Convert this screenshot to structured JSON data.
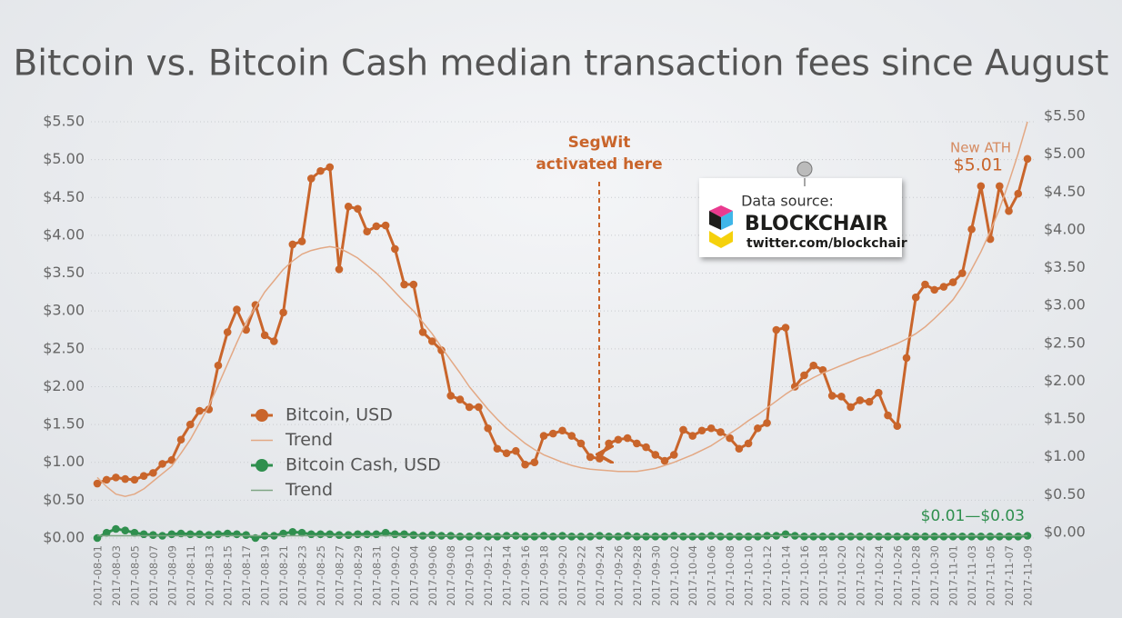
{
  "chart_data": {
    "type": "line",
    "title": "Bitcoin vs. Bitcoin Cash median transaction fees since August",
    "categories": [
      "2017-08-01",
      null,
      "2017-08-03",
      null,
      "2017-08-05",
      null,
      "2017-08-07",
      null,
      "2017-08-09",
      null,
      "2017-08-11",
      null,
      "2017-08-13",
      null,
      "2017-08-15",
      null,
      "2017-08-17",
      null,
      "2017-08-19",
      null,
      "2017-08-21",
      null,
      "2017-08-23",
      null,
      "2017-08-25",
      null,
      "2017-08-27",
      null,
      "2017-08-29",
      null,
      "2017-08-31",
      null,
      "2017-09-02",
      null,
      "2017-09-04",
      null,
      "2017-09-06",
      null,
      "2017-09-08",
      null,
      "2017-09-10",
      null,
      "2017-09-12",
      null,
      "2017-09-14",
      null,
      "2017-09-16",
      null,
      "2017-09-18",
      null,
      "2017-09-20",
      null,
      "2017-09-22",
      null,
      "2017-09-24",
      null,
      "2017-09-26",
      null,
      "2017-09-28",
      null,
      "2017-09-30",
      null,
      "2017-10-02",
      null,
      "2017-10-04",
      null,
      "2017-10-06",
      null,
      "2017-10-08",
      null,
      "2017-10-10",
      null,
      "2017-10-12",
      null,
      "2017-10-14",
      null,
      "2017-10-16",
      null,
      "2017-10-18",
      null,
      "2017-10-20",
      null,
      "2017-10-22",
      null,
      "2017-10-24",
      null,
      "2017-10-26",
      null,
      "2017-10-28",
      null,
      "2017-10-30",
      null,
      "2017-11-01",
      null,
      "2017-11-03",
      null,
      "2017-11-05",
      null,
      "2017-11-07",
      null,
      "2017-11-09"
    ],
    "series": [
      {
        "name": "Bitcoin, USD",
        "color": "#c9652b",
        "style": "dots",
        "values": [
          0.72,
          0.77,
          0.8,
          0.78,
          0.77,
          0.82,
          0.86,
          0.98,
          1.03,
          1.3,
          1.5,
          1.68,
          1.7,
          2.28,
          2.72,
          3.02,
          2.75,
          3.08,
          2.68,
          2.6,
          2.98,
          3.88,
          3.92,
          4.75,
          4.85,
          4.9,
          3.55,
          4.38,
          4.35,
          4.05,
          4.12,
          4.13,
          3.82,
          3.35,
          3.35,
          2.72,
          2.6,
          2.48,
          1.88,
          1.83,
          1.73,
          1.73,
          1.45,
          1.18,
          1.12,
          1.15,
          0.97,
          1.0,
          1.35,
          1.38,
          1.42,
          1.35,
          1.25,
          1.07,
          1.05,
          1.25,
          1.3,
          1.32,
          1.25,
          1.2,
          1.1,
          1.02,
          1.1,
          1.43,
          1.35,
          1.42,
          1.45,
          1.4,
          1.32,
          1.18,
          1.25,
          1.45,
          1.52,
          2.75,
          2.78,
          2.0,
          2.15,
          2.28,
          2.22,
          1.88,
          1.87,
          1.73,
          1.82,
          1.8,
          1.92,
          1.62,
          1.48,
          2.38,
          3.18,
          3.35,
          3.28,
          3.32,
          3.38,
          3.5,
          4.08,
          4.65,
          3.95,
          4.65,
          4.32,
          4.55,
          5.01
        ]
      },
      {
        "name": "Trend",
        "color": "#e3a884",
        "style": "thin",
        "values": [
          0.8,
          0.68,
          0.58,
          0.55,
          0.58,
          0.65,
          0.75,
          0.85,
          0.95,
          1.12,
          1.3,
          1.52,
          1.75,
          2.02,
          2.3,
          2.58,
          2.85,
          3.05,
          3.25,
          3.4,
          3.55,
          3.66,
          3.75,
          3.8,
          3.83,
          3.85,
          3.83,
          3.77,
          3.7,
          3.6,
          3.5,
          3.38,
          3.25,
          3.12,
          3.0,
          2.85,
          2.7,
          2.52,
          2.35,
          2.18,
          2.0,
          1.85,
          1.7,
          1.57,
          1.45,
          1.35,
          1.25,
          1.17,
          1.1,
          1.05,
          1.0,
          0.96,
          0.93,
          0.91,
          0.9,
          0.89,
          0.88,
          0.88,
          0.88,
          0.9,
          0.92,
          0.96,
          1.0,
          1.05,
          1.1,
          1.16,
          1.22,
          1.3,
          1.38,
          1.46,
          1.55,
          1.63,
          1.72,
          1.81,
          1.9,
          1.98,
          2.05,
          2.12,
          2.18,
          2.23,
          2.28,
          2.33,
          2.38,
          2.42,
          2.47,
          2.52,
          2.57,
          2.63,
          2.7,
          2.79,
          2.9,
          3.02,
          3.15,
          3.33,
          3.55,
          3.78,
          4.05,
          4.35,
          4.7,
          5.08,
          5.5
        ]
      },
      {
        "name": "Bitcoin Cash, USD",
        "color": "#2f8f4e",
        "style": "dots",
        "values": [
          0.0,
          0.07,
          0.12,
          0.1,
          0.07,
          0.05,
          0.04,
          0.03,
          0.05,
          0.06,
          0.05,
          0.05,
          0.04,
          0.05,
          0.06,
          0.05,
          0.04,
          0.0,
          0.03,
          0.03,
          0.06,
          0.08,
          0.07,
          0.05,
          0.05,
          0.05,
          0.04,
          0.04,
          0.05,
          0.05,
          0.05,
          0.07,
          0.05,
          0.05,
          0.04,
          0.03,
          0.04,
          0.03,
          0.03,
          0.02,
          0.02,
          0.03,
          0.02,
          0.02,
          0.03,
          0.03,
          0.02,
          0.02,
          0.03,
          0.02,
          0.03,
          0.02,
          0.02,
          0.02,
          0.03,
          0.02,
          0.02,
          0.03,
          0.02,
          0.02,
          0.02,
          0.02,
          0.03,
          0.02,
          0.02,
          0.02,
          0.03,
          0.02,
          0.02,
          0.02,
          0.02,
          0.02,
          0.03,
          0.03,
          0.05,
          0.03,
          0.02,
          0.02,
          0.02,
          0.02,
          0.02,
          0.02,
          0.02,
          0.02,
          0.02,
          0.02,
          0.02,
          0.02,
          0.02,
          0.02,
          0.02,
          0.02,
          0.02,
          0.02,
          0.02,
          0.02,
          0.02,
          0.02,
          0.02,
          0.02,
          0.03
        ]
      },
      {
        "name": "Trend",
        "color": "#7fa584",
        "style": "thin",
        "values": [
          0.03,
          0.03,
          0.03,
          0.03,
          0.03,
          0.03,
          0.03,
          0.03,
          0.03,
          0.03,
          0.03,
          0.03,
          0.03,
          0.03,
          0.03,
          0.03,
          0.03,
          0.03,
          0.03,
          0.03,
          0.03,
          0.03,
          0.03,
          0.03,
          0.03,
          0.03,
          0.03,
          0.03,
          0.03,
          0.03,
          0.03,
          0.03,
          0.03,
          0.03,
          0.03,
          0.03,
          0.03,
          0.03,
          0.03,
          0.03,
          0.03,
          0.03,
          0.03,
          0.03,
          0.03,
          0.03,
          0.03,
          0.03,
          0.03,
          0.03,
          0.03,
          0.03,
          0.03,
          0.03,
          0.03,
          0.03,
          0.03,
          0.03,
          0.03,
          0.03,
          0.03,
          0.03,
          0.03,
          0.03,
          0.03,
          0.03,
          0.03,
          0.03,
          0.03,
          0.03,
          0.03,
          0.03,
          0.03,
          0.03,
          0.03,
          0.03,
          0.03,
          0.03,
          0.03,
          0.03,
          0.03,
          0.03,
          0.03,
          0.03,
          0.03,
          0.03,
          0.03,
          0.03,
          0.03,
          0.03,
          0.03,
          0.03,
          0.03,
          0.03,
          0.03,
          0.03,
          0.03,
          0.03,
          0.03,
          0.03,
          0.03
        ]
      }
    ],
    "ylim": [
      0,
      5.5
    ],
    "yticks": [
      {
        "value": 0,
        "label": "$0.00"
      },
      {
        "value": 0.5,
        "label": "$0.50"
      },
      {
        "value": 1,
        "label": "$1.00"
      },
      {
        "value": 1.5,
        "label": "$1.50"
      },
      {
        "value": 2,
        "label": "$2.00"
      },
      {
        "value": 2.5,
        "label": "$2.50"
      },
      {
        "value": 3,
        "label": "$3.00"
      },
      {
        "value": 3.5,
        "label": "$3.50"
      },
      {
        "value": 4,
        "label": "$4.00"
      },
      {
        "value": 4.5,
        "label": "$4.50"
      },
      {
        "value": 5,
        "label": "$5.00"
      },
      {
        "value": 5.5,
        "label": "$5.50"
      }
    ],
    "grid": true,
    "annotations": {
      "segwit": [
        "SegWit",
        "activated here"
      ],
      "ath": "New ATH",
      "ath_value": "$5.01",
      "bch_range": "$0.01—$0.03"
    },
    "source": {
      "label": "Data source:",
      "name": "BLOCKCHAIR",
      "handle": "twitter.com/blockchair"
    }
  }
}
